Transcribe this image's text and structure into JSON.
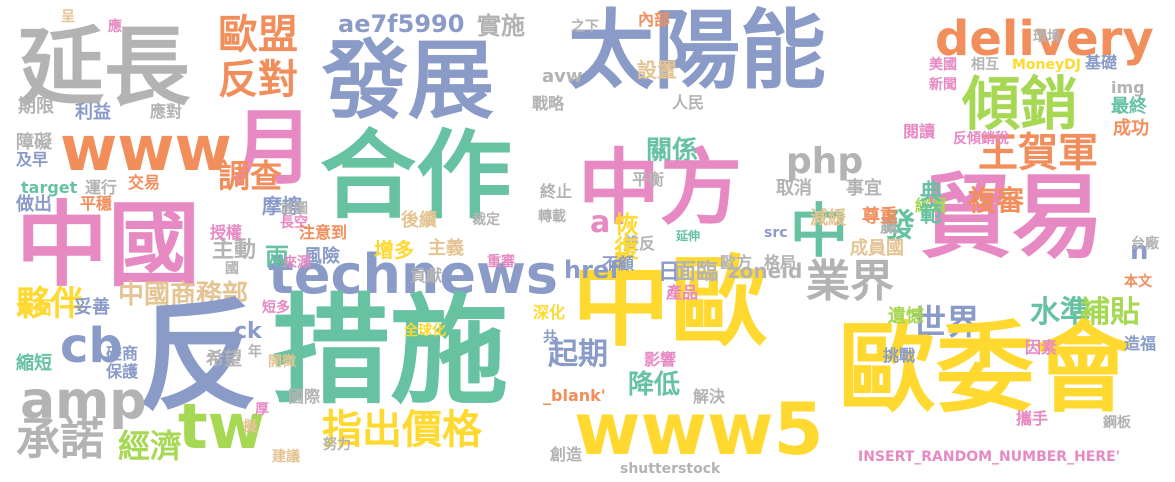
{
  "palette": {
    "blue": "#8a9bc8",
    "green": "#66c2a0",
    "orange": "#f28e5c",
    "pink": "#e78ac3",
    "lime": "#a6d854",
    "yellow": "#ffd92f",
    "tan": "#e5c494",
    "gray": "#b3b3b3"
  },
  "words": [
    {
      "text": "太陽能",
      "color": "#8a9bc8"
    },
    {
      "text": "延長",
      "color": "#b3b3b3"
    },
    {
      "text": "發展",
      "color": "#8a9bc8"
    },
    {
      "text": "歐盟",
      "color": "#f28e5c"
    },
    {
      "text": "反對",
      "color": "#f28e5c"
    },
    {
      "text": "ae7f5990",
      "color": "#8a9bc8"
    },
    {
      "text": "實施",
      "color": "#b3b3b3"
    },
    {
      "text": "delivery",
      "color": "#f28e5c"
    },
    {
      "text": "傾銷",
      "color": "#a6d854"
    },
    {
      "text": "www",
      "color": "#f28e5c"
    },
    {
      "text": "月",
      "color": "#e78ac3"
    },
    {
      "text": "合作",
      "color": "#66c2a0"
    },
    {
      "text": "關係",
      "color": "#66c2a0"
    },
    {
      "text": "中方",
      "color": "#e78ac3"
    },
    {
      "text": "php",
      "color": "#b3b3b3"
    },
    {
      "text": "王賀軍",
      "color": "#f28e5c"
    },
    {
      "text": "中國",
      "color": "#e78ac3"
    },
    {
      "text": "technews",
      "color": "#8a9bc8"
    },
    {
      "text": "中",
      "color": "#66c2a0"
    },
    {
      "text": "貿易",
      "color": "#e78ac3"
    },
    {
      "text": "調查",
      "color": "#f28e5c"
    },
    {
      "text": "複審",
      "color": "#f28e5c"
    },
    {
      "text": "業界",
      "color": "#b3b3b3"
    },
    {
      "text": "夥伴",
      "color": "#ffd92f"
    },
    {
      "text": "中國商務部",
      "color": "#e5c494"
    },
    {
      "text": "世界",
      "color": "#8a9bc8"
    },
    {
      "text": "水準",
      "color": "#66c2a0"
    },
    {
      "text": "補貼",
      "color": "#a6d854"
    },
    {
      "text": "cb",
      "color": "#8a9bc8"
    },
    {
      "text": "反",
      "color": "#8a9bc8"
    },
    {
      "text": "措施",
      "color": "#66c2a0"
    },
    {
      "text": "中歐",
      "color": "#ffd92f"
    },
    {
      "text": "歐委會",
      "color": "#ffd92f"
    },
    {
      "text": "amp",
      "color": "#b3b3b3"
    },
    {
      "text": "承諾",
      "color": "#b3b3b3"
    },
    {
      "text": "tw",
      "color": "#a6d854"
    },
    {
      "text": "經濟",
      "color": "#a6d854"
    },
    {
      "text": "指出價格",
      "color": "#ffd92f"
    },
    {
      "text": "www5",
      "color": "#ffd92f"
    },
    {
      "text": "起期",
      "color": "#8a9bc8"
    },
    {
      "text": "降低",
      "color": "#66c2a0"
    },
    {
      "text": "主動",
      "color": "#b3b3b3"
    },
    {
      "text": "href",
      "color": "#8a9bc8"
    },
    {
      "text": "日",
      "color": "#8a9bc8"
    },
    {
      "text": "面臨",
      "color": "#b3b3b3"
    },
    {
      "text": "zoneid",
      "color": "#b3b3b3"
    },
    {
      "text": "發",
      "color": "#66c2a0"
    },
    {
      "text": "n",
      "color": "#8a9bc8"
    },
    {
      "text": "遺憾",
      "color": "#a6d854"
    },
    {
      "text": "贏",
      "color": "#b3b3b3"
    },
    {
      "text": "ck",
      "color": "#8a9bc8"
    },
    {
      "text": "兩",
      "color": "#66c2a0"
    },
    {
      "text": "增多",
      "color": "#ffd92f"
    },
    {
      "text": "主義",
      "color": "#e5c494"
    },
    {
      "text": "雙反",
      "color": "#b3b3b3"
    },
    {
      "text": "成員國",
      "color": "#e5c494"
    },
    {
      "text": "減緩",
      "color": "#e5c494"
    },
    {
      "text": "尊重",
      "color": "#f28e5c"
    },
    {
      "text": "經貿",
      "color": "#a6d854"
    },
    {
      "text": "典範",
      "color": "#66c2a0"
    },
    {
      "text": "事宜",
      "color": "#b3b3b3"
    },
    {
      "text": "取消",
      "color": "#b3b3b3"
    },
    {
      "text": "平衡",
      "color": "#b3b3b3"
    },
    {
      "text": "終止",
      "color": "#b3b3b3"
    },
    {
      "text": "a",
      "color": "#e78ac3"
    },
    {
      "text": "恢復",
      "color": "#ffd92f"
    },
    {
      "text": "後續",
      "color": "#e5c494"
    },
    {
      "text": "摩擦",
      "color": "#8a9bc8"
    },
    {
      "text": "長空",
      "color": "#e78ac3"
    },
    {
      "text": "設置",
      "color": "#e5c494"
    },
    {
      "text": "人民",
      "color": "#b3b3b3"
    },
    {
      "text": "戰略",
      "color": "#b3b3b3"
    },
    {
      "text": "avw",
      "color": "#b3b3b3"
    },
    {
      "text": "之下",
      "color": "#b3b3b3"
    },
    {
      "text": "內部",
      "color": "#f28e5c"
    },
    {
      "text": "環境",
      "color": "#b3b3b3"
    },
    {
      "text": "MoneyDJ",
      "color": "#ffd92f"
    },
    {
      "text": "基礎",
      "color": "#8a9bc8"
    },
    {
      "text": "相互",
      "color": "#b3b3b3"
    },
    {
      "text": "美國",
      "color": "#e78ac3"
    },
    {
      "text": "新聞",
      "color": "#e78ac3"
    },
    {
      "text": "img",
      "color": "#b3b3b3"
    },
    {
      "text": "最終",
      "color": "#66c2a0"
    },
    {
      "text": "成功",
      "color": "#f28e5c"
    },
    {
      "text": "閱讀",
      "color": "#e78ac3"
    },
    {
      "text": "反傾銷稅",
      "color": "#e78ac3"
    },
    {
      "text": "呈",
      "color": "#e5c494"
    },
    {
      "text": "應",
      "color": "#e78ac3"
    },
    {
      "text": "期限",
      "color": "#b3b3b3"
    },
    {
      "text": "利益",
      "color": "#8a9bc8"
    },
    {
      "text": "應對",
      "color": "#b3b3b3"
    },
    {
      "text": "障礙",
      "color": "#b3b3b3"
    },
    {
      "text": "及早",
      "color": "#8a9bc8"
    },
    {
      "text": "target",
      "color": "#66c2a0"
    },
    {
      "text": "運行",
      "color": "#b3b3b3"
    },
    {
      "text": "交易",
      "color": "#f28e5c"
    },
    {
      "text": "做出",
      "color": "#8a9bc8"
    },
    {
      "text": "平穩",
      "color": "#f28e5c"
    },
    {
      "text": "首圖",
      "color": "#b3b3b3"
    },
    {
      "text": "轉載",
      "color": "#b3b3b3"
    },
    {
      "text": "裁定",
      "color": "#b3b3b3"
    },
    {
      "text": "延伸",
      "color": "#66c2a0"
    },
    {
      "text": "src",
      "color": "#8a9bc8"
    },
    {
      "text": "注意到",
      "color": "#f28e5c"
    },
    {
      "text": "授權",
      "color": "#e78ac3"
    },
    {
      "text": "風險",
      "color": "#8a9bc8"
    },
    {
      "text": "來源",
      "color": "#e78ac3"
    },
    {
      "text": "貢獻",
      "color": "#b3b3b3"
    },
    {
      "text": "重審",
      "color": "#e78ac3"
    },
    {
      "text": "歐方",
      "color": "#b3b3b3"
    },
    {
      "text": "格局",
      "color": "#b3b3b3"
    },
    {
      "text": "台廠",
      "color": "#b3b3b3"
    },
    {
      "text": "本文",
      "color": "#f28e5c"
    },
    {
      "text": "不顧",
      "color": "#8a9bc8"
    },
    {
      "text": "國",
      "color": "#b3b3b3"
    },
    {
      "text": "負面",
      "color": "#ffd92f"
    },
    {
      "text": "妥善",
      "color": "#8a9bc8"
    },
    {
      "text": "短多",
      "color": "#e78ac3"
    },
    {
      "text": "年",
      "color": "#b3b3b3"
    },
    {
      "text": "全球化",
      "color": "#ffd92f"
    },
    {
      "text": "產品",
      "color": "#e78ac3"
    },
    {
      "text": "深化",
      "color": "#ffd92f"
    },
    {
      "text": "共",
      "color": "#8a9bc8"
    },
    {
      "text": "挑戰",
      "color": "#8a9bc8"
    },
    {
      "text": "因素",
      "color": "#e78ac3"
    },
    {
      "text": "造福",
      "color": "#8a9bc8"
    },
    {
      "text": "縮短",
      "color": "#66c2a0"
    },
    {
      "text": "磋商",
      "color": "#8a9bc8"
    },
    {
      "text": "保護",
      "color": "#8a9bc8"
    },
    {
      "text": "希望",
      "color": "#b3b3b3"
    },
    {
      "text": "開徵",
      "color": "#e5c494"
    },
    {
      "text": "影響",
      "color": "#e78ac3"
    },
    {
      "text": "_blank'",
      "color": "#f28e5c"
    },
    {
      "text": "解決",
      "color": "#b3b3b3"
    },
    {
      "text": "國際",
      "color": "#b3b3b3"
    },
    {
      "text": "厚",
      "color": "#e78ac3"
    },
    {
      "text": "擬",
      "color": "#e5c494"
    },
    {
      "text": "努力",
      "color": "#b3b3b3"
    },
    {
      "text": "攜手",
      "color": "#e78ac3"
    },
    {
      "text": "鋼板",
      "color": "#b3b3b3"
    },
    {
      "text": "建議",
      "color": "#e5c494"
    },
    {
      "text": "創造",
      "color": "#b3b3b3"
    },
    {
      "text": "INSERT_RANDOM_NUMBER_HERE'",
      "color": "#e78ac3"
    },
    {
      "text": "shutterstock",
      "color": "#b3b3b3"
    }
  ]
}
